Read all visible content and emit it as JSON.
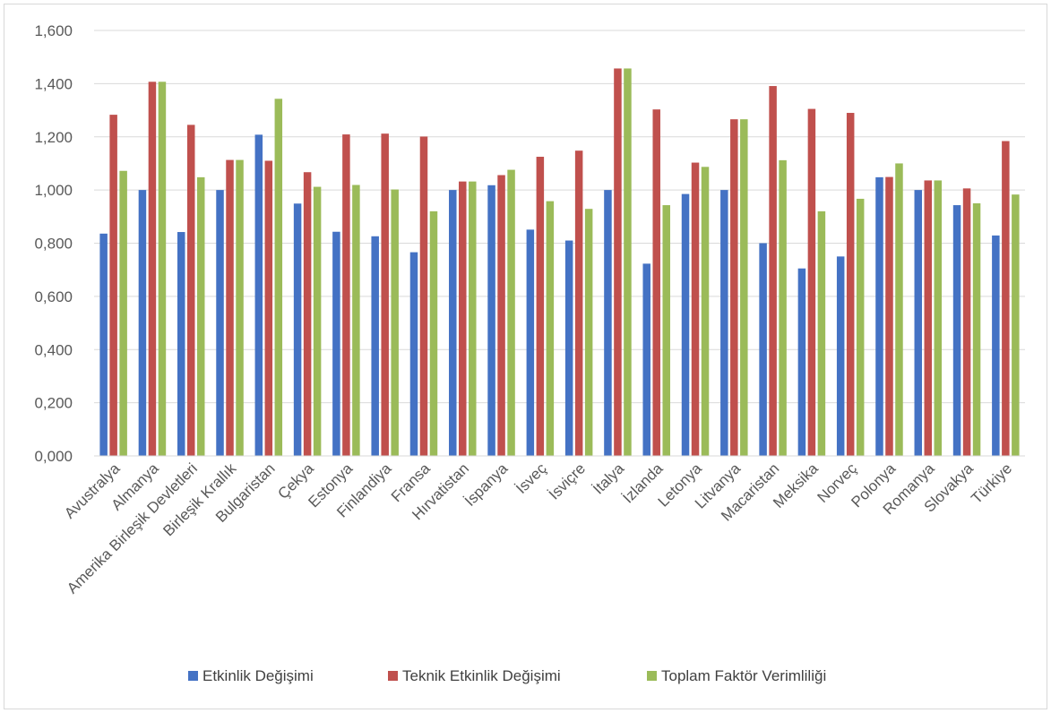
{
  "chart_data": {
    "type": "bar",
    "title": "",
    "xlabel": "",
    "ylabel": "",
    "ylim": [
      0,
      1.6
    ],
    "ytick_values": [
      0,
      0.2,
      0.4,
      0.6,
      0.8,
      1.0,
      1.2,
      1.4,
      1.6
    ],
    "ytick_labels": [
      "0,000",
      "0,200",
      "0,400",
      "0,600",
      "0,800",
      "1,000",
      "1,200",
      "1,400",
      "1,600"
    ],
    "grid": true,
    "legend_position": "bottom",
    "categories": [
      "Avustralya",
      "Almanya",
      "Amerika Birleşik Devletleri",
      "Birleşik Krallık",
      "Bulgaristan",
      "Çekya",
      "Estonya",
      "Finlandiya",
      "Fransa",
      "Hırvatistan",
      "İspanya",
      "İsveç",
      "İsviçre",
      "İtalya",
      "İzlanda",
      "Letonya",
      "Litvanya",
      "Macaristan",
      "Meksika",
      "Norveç",
      "Polonya",
      "Romanya",
      "Slovakya",
      "Türkiye"
    ],
    "series": [
      {
        "name": "Etkinlik Değişimi",
        "color": "#4472c4",
        "values": [
          0.836,
          1.0,
          0.842,
          1.0,
          1.208,
          0.949,
          0.843,
          0.826,
          0.766,
          1.0,
          1.018,
          0.851,
          0.81,
          1.0,
          0.723,
          0.985,
          1.0,
          0.8,
          0.705,
          0.75,
          1.048,
          1.0,
          0.943,
          0.829
        ]
      },
      {
        "name": "Teknik Etkinlik Değişimi",
        "color": "#c0504d",
        "values": [
          1.283,
          1.407,
          1.245,
          1.113,
          1.11,
          1.067,
          1.209,
          1.212,
          1.201,
          1.032,
          1.056,
          1.125,
          1.148,
          1.457,
          1.303,
          1.103,
          1.266,
          1.391,
          1.305,
          1.29,
          1.049,
          1.036,
          1.006,
          1.184
        ]
      },
      {
        "name": "Toplam Faktör Verimliliği",
        "color": "#9bbb59",
        "values": [
          1.072,
          1.407,
          1.048,
          1.113,
          1.343,
          1.012,
          1.019,
          1.002,
          0.92,
          1.032,
          1.076,
          0.958,
          0.929,
          1.457,
          0.943,
          1.087,
          1.266,
          1.112,
          0.92,
          0.967,
          1.1,
          1.036,
          0.95,
          0.983
        ]
      }
    ]
  }
}
